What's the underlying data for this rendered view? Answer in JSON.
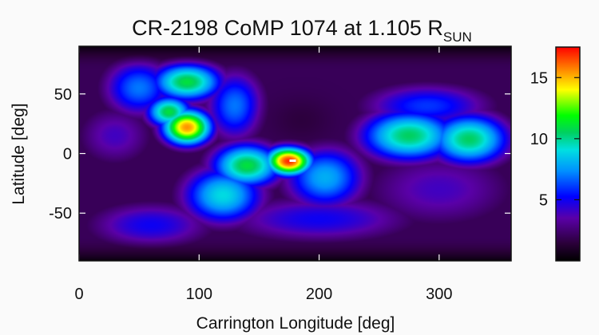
{
  "chart_data": {
    "type": "heatmap",
    "title": {
      "main": "CR-2198 CoMP 1074 at 1.105 R",
      "subscript": "SUN"
    },
    "xlabel": "Carrington Longitude [deg]",
    "ylabel": "Latitude [deg]",
    "xlim": [
      0,
      360
    ],
    "ylim": [
      -90,
      90
    ],
    "x_ticks": [
      0,
      100,
      200,
      300
    ],
    "y_ticks": [
      -50,
      0,
      50
    ],
    "colorbar": {
      "range": [
        0,
        17.5
      ],
      "ticks": [
        5,
        10,
        15
      ],
      "colormap": "rainbow (black-purple-blue-cyan-green-yellow-red)"
    },
    "features": [
      {
        "lon": 175,
        "lat": -6,
        "value": 17.4,
        "spread_lon": 14,
        "spread_lat": 9
      },
      {
        "lon": 90,
        "lat": 22,
        "value": 15.5,
        "spread_lon": 15,
        "spread_lat": 11
      },
      {
        "lon": 75,
        "lat": 35,
        "value": 11,
        "spread_lon": 14,
        "spread_lat": 10
      },
      {
        "lon": 90,
        "lat": 60,
        "value": 11,
        "spread_lon": 22,
        "spread_lat": 12
      },
      {
        "lon": 50,
        "lat": 55,
        "value": 7,
        "spread_lon": 22,
        "spread_lat": 18
      },
      {
        "lon": 130,
        "lat": 40,
        "value": 7,
        "spread_lon": 18,
        "spread_lat": 22
      },
      {
        "lon": 140,
        "lat": -10,
        "value": 11,
        "spread_lon": 22,
        "spread_lat": 14
      },
      {
        "lon": 120,
        "lat": -35,
        "value": 9,
        "spread_lon": 25,
        "spread_lat": 18
      },
      {
        "lon": 205,
        "lat": -20,
        "value": 8,
        "spread_lon": 25,
        "spread_lat": 20
      },
      {
        "lon": 275,
        "lat": 15,
        "value": 10.5,
        "spread_lon": 30,
        "spread_lat": 16
      },
      {
        "lon": 325,
        "lat": 12,
        "value": 10.5,
        "spread_lon": 25,
        "spread_lat": 16
      },
      {
        "lon": 290,
        "lat": 40,
        "value": 6,
        "spread_lon": 40,
        "spread_lat": 14
      },
      {
        "lon": 30,
        "lat": 15,
        "value": 4,
        "spread_lon": 25,
        "spread_lat": 20
      },
      {
        "lon": 200,
        "lat": -55,
        "value": 5,
        "spread_lon": 60,
        "spread_lat": 15
      },
      {
        "lon": 60,
        "lat": -60,
        "value": 5,
        "spread_lon": 40,
        "spread_lat": 15
      },
      {
        "lon": 300,
        "lat": -30,
        "value": 4,
        "spread_lon": 50,
        "spread_lat": 25
      }
    ],
    "minima": [
      {
        "lon": 185,
        "lat": 28,
        "value": 1.5,
        "spread_lon": 18,
        "spread_lat": 13
      }
    ],
    "peak_marker": {
      "lon": 178,
      "lat": -6
    }
  }
}
